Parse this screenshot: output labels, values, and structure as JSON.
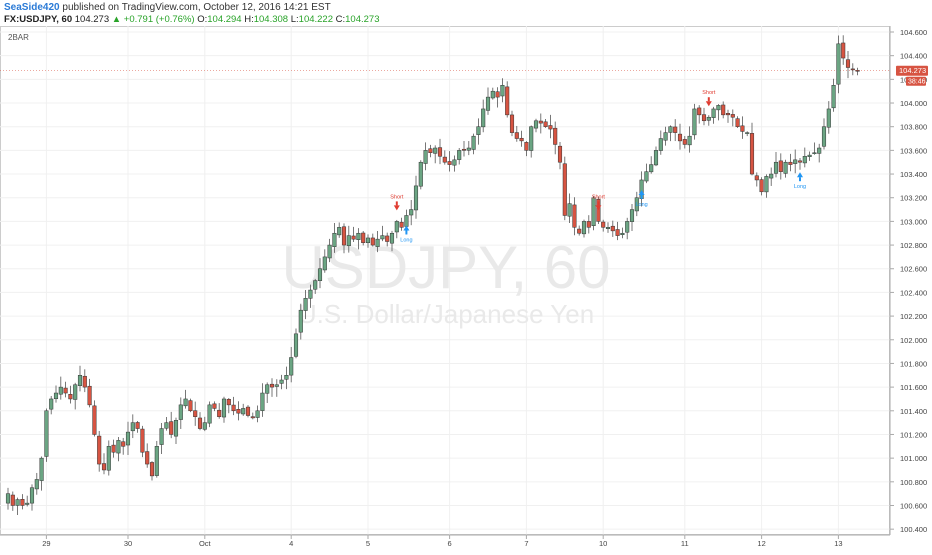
{
  "header": {
    "user": "SeaSide420",
    "published_text": "published on TradingView.com, October 12, 2016 14:21 EST",
    "symbol": "FX:USDJPY, 60",
    "last": "104.273",
    "change": "+0.791 (+0.76%)",
    "o_label": "O:",
    "o_value": "104.294",
    "h_label": "H:",
    "h_value": "104.308",
    "l_label": "L:",
    "l_value": "104.222",
    "c_label": "C:",
    "c_value": "104.273"
  },
  "indicator_label": "2BAR",
  "watermark": {
    "symbol": "USDJPY, 60",
    "name": "U.S. Dollar/Japanese Yen"
  },
  "price_tag": {
    "value": "104.273",
    "countdown": "38:46"
  },
  "colors": {
    "up": "#6ba583",
    "down": "#d75442",
    "short": "#e03c31",
    "long": "#2196f3",
    "tag": "#d75442"
  },
  "chart_data": {
    "type": "candlestick",
    "ylim": [
      100.3,
      104.6
    ],
    "y_ticks": [
      "104.600",
      "104.400",
      "104.200",
      "104.000",
      "103.800",
      "103.600",
      "103.400",
      "103.200",
      "103.000",
      "102.800",
      "102.600",
      "102.400",
      "102.200",
      "102.000",
      "101.800",
      "101.600",
      "101.400",
      "101.200",
      "101.000",
      "100.800",
      "100.600",
      "100.400"
    ],
    "x_ticks": [
      {
        "label": "29",
        "i": 8
      },
      {
        "label": "30",
        "i": 25
      },
      {
        "label": "Oct",
        "i": 41
      },
      {
        "label": "4",
        "i": 59
      },
      {
        "label": "5",
        "i": 75
      },
      {
        "label": "6",
        "i": 92
      },
      {
        "label": "7",
        "i": 108
      },
      {
        "label": "10",
        "i": 124
      },
      {
        "label": "11",
        "i": 141
      },
      {
        "label": "12",
        "i": 157
      },
      {
        "label": "13",
        "i": 173
      }
    ],
    "close": [
      100.7,
      100.6,
      100.65,
      100.6,
      100.62,
      100.75,
      100.82,
      101.0,
      101.4,
      101.5,
      101.55,
      101.6,
      101.55,
      101.5,
      101.62,
      101.7,
      101.6,
      101.45,
      101.2,
      100.95,
      100.9,
      101.1,
      101.05,
      101.15,
      101.1,
      101.22,
      101.3,
      101.25,
      101.05,
      100.95,
      100.85,
      101.1,
      101.25,
      101.3,
      101.2,
      101.32,
      101.45,
      101.5,
      101.4,
      101.35,
      101.25,
      101.3,
      101.45,
      101.42,
      101.35,
      101.5,
      101.45,
      101.4,
      101.38,
      101.42,
      101.36,
      101.34,
      101.4,
      101.55,
      101.62,
      101.6,
      101.62,
      101.66,
      101.7,
      101.85,
      102.05,
      102.25,
      102.35,
      102.42,
      102.5,
      102.6,
      102.7,
      102.8,
      102.9,
      102.95,
      102.8,
      102.88,
      102.85,
      102.9,
      102.82,
      102.86,
      102.8,
      102.85,
      102.88,
      102.83,
      102.9,
      103.0,
      102.95,
      103.05,
      103.1,
      103.3,
      103.5,
      103.6,
      103.58,
      103.62,
      103.55,
      103.5,
      103.48,
      103.52,
      103.6,
      103.6,
      103.62,
      103.72,
      103.8,
      103.95,
      104.05,
      104.1,
      104.05,
      104.15,
      103.9,
      103.75,
      103.7,
      103.68,
      103.6,
      103.8,
      103.85,
      103.83,
      103.8,
      103.78,
      103.65,
      103.5,
      103.05,
      103.15,
      102.95,
      102.9,
      103.0,
      102.95,
      103.2,
      103.0,
      102.95,
      102.95,
      102.92,
      102.88,
      102.9,
      103.0,
      103.1,
      103.2,
      103.35,
      103.42,
      103.48,
      103.6,
      103.7,
      103.75,
      103.8,
      103.75,
      103.68,
      103.65,
      103.72,
      103.95,
      103.9,
      103.85,
      103.88,
      103.95,
      103.98,
      103.9,
      103.9,
      103.88,
      103.8,
      103.76,
      103.75,
      103.4,
      103.35,
      103.25,
      103.38,
      103.4,
      103.5,
      103.42,
      103.5,
      103.48,
      103.52,
      103.5,
      103.55,
      103.56,
      103.58,
      103.62,
      103.8,
      103.95,
      104.15,
      104.5,
      104.38,
      104.3,
      104.28,
      104.273
    ]
  }
}
